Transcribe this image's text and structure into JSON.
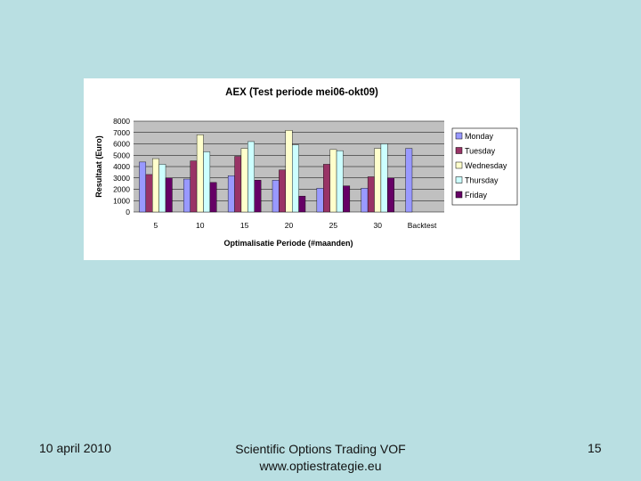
{
  "slide": {
    "footer_date": "10 april 2010",
    "footer_company": "Scientific Options Trading VOF",
    "footer_url": "www.optiestrategie.eu",
    "page_number": "15"
  },
  "chart_data": {
    "type": "bar",
    "title": "AEX (Test periode mei06-okt09)",
    "xlabel": "Optimalisatie Periode (#maanden)",
    "ylabel": "Resultaat (Euro)",
    "ylim": [
      0,
      8000
    ],
    "yticks": [
      0,
      1000,
      2000,
      3000,
      4000,
      5000,
      6000,
      7000,
      8000
    ],
    "categories": [
      "5",
      "10",
      "15",
      "20",
      "25",
      "30",
      "Backtest"
    ],
    "legend_position": "right",
    "series": [
      {
        "name": "Monday",
        "color": "#9999ff",
        "values": [
          4400,
          2900,
          3200,
          2800,
          2100,
          2100,
          5600
        ]
      },
      {
        "name": "Tuesday",
        "color": "#993366",
        "values": [
          3300,
          4500,
          4900,
          3700,
          4200,
          3100,
          null
        ]
      },
      {
        "name": "Wednesday",
        "color": "#ffffcc",
        "values": [
          4700,
          6800,
          5600,
          7200,
          5500,
          5600,
          null
        ]
      },
      {
        "name": "Thursday",
        "color": "#ccffff",
        "values": [
          4200,
          5300,
          6200,
          5900,
          5400,
          6000,
          null
        ]
      },
      {
        "name": "Friday",
        "color": "#660066",
        "values": [
          3000,
          2600,
          2800,
          1400,
          2300,
          3000,
          null
        ]
      }
    ]
  }
}
